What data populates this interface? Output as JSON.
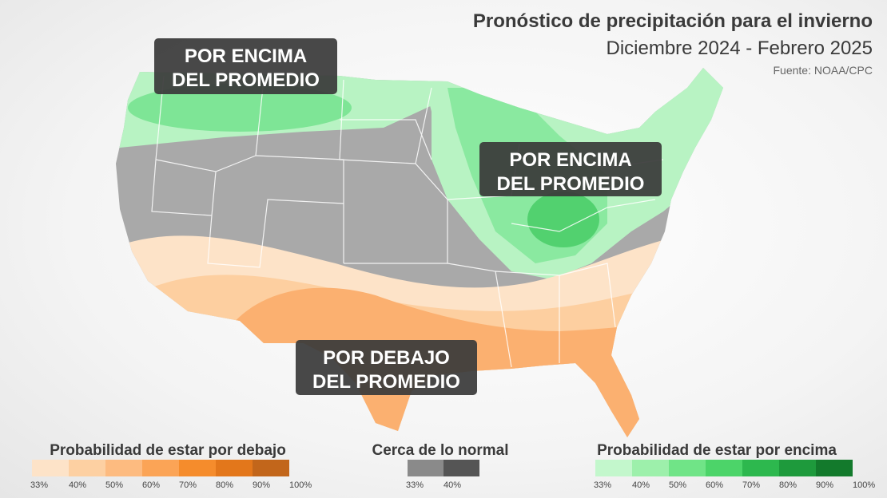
{
  "header": {
    "title": "Pronóstico de precipitación para el invierno",
    "subtitle": "Diciembre 2024 - Febrero 2025",
    "source": "Fuente: NOAA/CPC"
  },
  "map_labels": [
    {
      "lines": [
        "POR ENCIMA",
        "DEL PROMEDIO"
      ]
    },
    {
      "lines": [
        "POR ENCIMA",
        "DEL PROMEDIO"
      ]
    },
    {
      "lines": [
        "POR DEBAJO",
        "DEL PROMEDIO"
      ]
    }
  ],
  "legend": [
    {
      "title": "Probabilidad de estar por debajo",
      "colors": [
        "#fde3c8",
        "#fdd0a2",
        "#fdbb80",
        "#fba456",
        "#f58c2c",
        "#e3771b",
        "#c2661b"
      ],
      "labels": [
        "33%",
        "40%",
        "50%",
        "60%",
        "70%",
        "80%",
        "90%",
        "100%"
      ]
    },
    {
      "title": "Cerca de lo normal",
      "colors": [
        "#8a8a8a",
        "#555555"
      ],
      "labels": [
        "33%",
        "40%"
      ]
    },
    {
      "title": "Probabilidad de estar por encima",
      "colors": [
        "#c3f7cc",
        "#9df0ab",
        "#70e487",
        "#4cd469",
        "#2db84e",
        "#1e9a3c",
        "#137a2c"
      ],
      "labels": [
        "33%",
        "40%",
        "50%",
        "60%",
        "70%",
        "80%",
        "90%",
        "100%"
      ]
    }
  ]
}
